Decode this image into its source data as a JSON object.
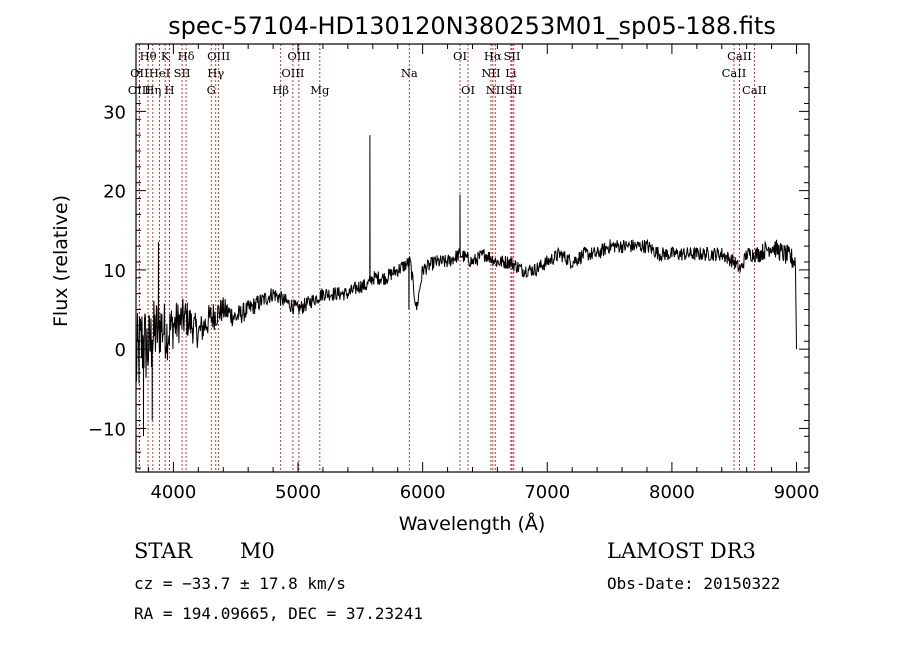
{
  "chart_data": {
    "type": "line",
    "title": "spec-57104-HD130120N380253M01_sp05-188.fits",
    "xlabel": "Wavelength (Å)",
    "ylabel": "Flux (relative)",
    "xlim": [
      3700,
      9100
    ],
    "ylim": [
      -15.5,
      38.5
    ],
    "xticks": [
      4000,
      5000,
      6000,
      7000,
      8000,
      9000
    ],
    "yticks": [
      -10,
      0,
      10,
      20,
      30
    ],
    "xticklabels": [
      "4000",
      "5000",
      "6000",
      "7000",
      "8000",
      "9000"
    ],
    "yticklabels": [
      "−10",
      "0",
      "10",
      "20",
      "30"
    ],
    "spectrum_anchor": {
      "x": [
        3700,
        3750,
        3800,
        3850,
        3900,
        3950,
        4000,
        4100,
        4200,
        4300,
        4400,
        4500,
        4600,
        4700,
        4800,
        4900,
        5000,
        5100,
        5200,
        5300,
        5400,
        5500,
        5550,
        5600,
        5700,
        5800,
        5900,
        5950,
        6000,
        6100,
        6200,
        6300,
        6400,
        6500,
        6600,
        6700,
        6800,
        6900,
        7000,
        7100,
        7200,
        7300,
        7400,
        7500,
        7600,
        7700,
        7800,
        7900,
        8000,
        8100,
        8200,
        8300,
        8400,
        8500,
        8550,
        8600,
        8700,
        8800,
        8900,
        9000
      ],
      "y": [
        -2,
        1,
        0,
        2,
        3,
        2,
        3,
        4,
        2,
        4,
        5,
        4,
        5,
        6,
        7,
        6,
        5,
        6,
        7,
        7,
        7,
        8,
        8,
        9,
        9,
        10,
        11,
        5,
        10,
        11,
        11,
        12,
        11,
        12,
        11,
        11,
        10,
        10,
        11,
        12,
        11,
        12,
        12,
        13,
        13,
        13,
        13,
        12,
        12,
        12,
        12,
        12,
        12,
        11,
        10,
        12,
        12,
        13,
        12,
        11
      ],
      "noise": [
        6,
        5.5,
        5,
        4.5,
        4,
        3.5,
        3,
        2.5,
        2,
        2,
        1.6,
        1.4,
        1.2,
        1.1,
        1,
        1,
        1,
        0.9,
        0.9,
        0.9,
        0.9,
        0.9,
        0.9,
        0.9,
        0.9,
        0.9,
        0.9,
        0.9,
        0.9,
        0.9,
        0.9,
        0.9,
        0.9,
        0.9,
        0.9,
        0.9,
        0.9,
        0.9,
        0.9,
        0.9,
        0.9,
        0.9,
        0.9,
        0.9,
        0.9,
        0.9,
        0.9,
        0.9,
        0.9,
        0.9,
        0.9,
        0.9,
        0.9,
        0.9,
        0.9,
        0.9,
        1.1,
        1.2,
        1.3,
        1.5
      ]
    },
    "spectrum_spikes": [
      {
        "x": 5577,
        "y": 27
      },
      {
        "x": 6300,
        "y": 19.5
      },
      {
        "x": 3880,
        "y": 13.5
      },
      {
        "x": 3830,
        "y": -9
      },
      {
        "x": 3760,
        "y": -11
      },
      {
        "x": 5890,
        "y": 5
      },
      {
        "x": 9000,
        "y": 0
      }
    ],
    "lines": [
      {
        "label": "Hθ",
        "x": 3797,
        "row": 0
      },
      {
        "label": "OII",
        "x": 3727,
        "row": 1
      },
      {
        "label": "OIII",
        "x": 3727,
        "row": 2
      },
      {
        "label": "K",
        "x": 3934,
        "row": 0
      },
      {
        "label": "HeI",
        "x": 3889,
        "row": 1
      },
      {
        "label": "Hη",
        "x": 3835,
        "row": 2
      },
      {
        "label": "Hδ",
        "x": 4102,
        "row": 0
      },
      {
        "label": "SII",
        "x": 4070,
        "row": 1
      },
      {
        "label": "H",
        "x": 3969,
        "row": 2
      },
      {
        "label": "OIII",
        "x": 4363,
        "row": 0
      },
      {
        "label": "Hγ",
        "x": 4340,
        "row": 1
      },
      {
        "label": "G",
        "x": 4304,
        "row": 2
      },
      {
        "label": "OIII",
        "x": 5007,
        "row": 0
      },
      {
        "label": "OIII",
        "x": 4959,
        "row": 1
      },
      {
        "label": "Hβ",
        "x": 4861,
        "row": 2
      },
      {
        "label": "Mg",
        "x": 5175,
        "row": 2
      },
      {
        "label": "Na",
        "x": 5893,
        "row": 1
      },
      {
        "label": "OI",
        "x": 6300,
        "row": 0
      },
      {
        "label": "OI",
        "x": 6364,
        "row": 2
      },
      {
        "label": "Hα",
        "x": 6563,
        "row": 0
      },
      {
        "label": "SII",
        "x": 6717,
        "row": 0
      },
      {
        "label": "NII",
        "x": 6548,
        "row": 1
      },
      {
        "label": "Li",
        "x": 6708,
        "row": 1
      },
      {
        "label": "NII",
        "x": 6583,
        "row": 2
      },
      {
        "label": "SII",
        "x": 6731,
        "row": 2
      },
      {
        "label": "CaII",
        "x": 8542,
        "row": 0
      },
      {
        "label": "CaII",
        "x": 8498,
        "row": 1
      },
      {
        "label": "CaII",
        "x": 8662,
        "row": 2
      }
    ],
    "grid": false,
    "line_color": "#000000",
    "marker_line_color": "#b22222"
  },
  "info": {
    "class_label": "STAR",
    "subclass": "M0",
    "survey": "LAMOST DR3",
    "cz": "cz = −33.7 ± 17.8 km/s",
    "obs_date": "Obs-Date: 20150322",
    "coords": "RA = 194.09665, DEC =  37.23241"
  }
}
